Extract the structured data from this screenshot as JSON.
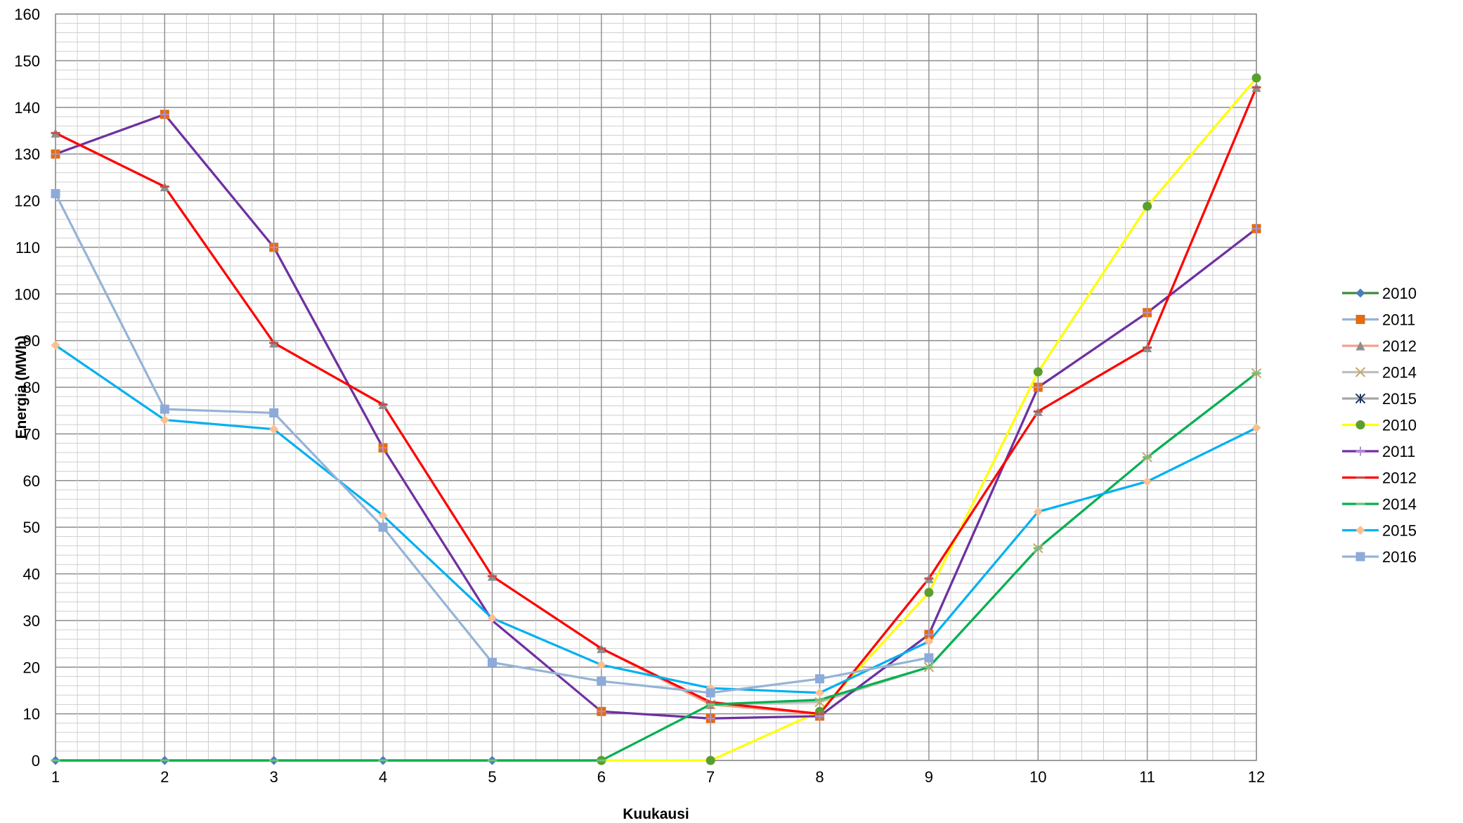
{
  "chart_data": {
    "type": "line",
    "title": "",
    "xlabel": "Kuukausi",
    "ylabel": "Energia (MWh)",
    "x": [
      1,
      2,
      3,
      4,
      5,
      6,
      7,
      8,
      9,
      10,
      11,
      12
    ],
    "x_ticks": [
      "1",
      "2",
      "3",
      "4",
      "5",
      "6",
      "7",
      "8",
      "9",
      "10",
      "11",
      "12"
    ],
    "y_ticks": [
      "0",
      "10",
      "20",
      "30",
      "40",
      "50",
      "60",
      "70",
      "80",
      "90",
      "100",
      "110",
      "120",
      "130",
      "140",
      "150",
      "160"
    ],
    "xlim": [
      1,
      12
    ],
    "ylim": [
      0,
      160
    ],
    "grid": true,
    "legend_position": "right",
    "series": [
      {
        "name": "2010",
        "color": "#3e8a3b",
        "marker": "diamond",
        "marker_color": "#4a7ebb",
        "values": [
          0,
          0,
          0,
          0,
          0,
          0,
          null,
          null,
          null,
          null,
          null,
          null
        ]
      },
      {
        "name": "2011",
        "color": "#95b3d7",
        "marker": "square",
        "marker_color": "#e46c0a",
        "values": [
          130,
          138.5,
          110,
          67,
          null,
          10.5,
          9,
          9.5,
          27,
          80,
          96,
          114
        ]
      },
      {
        "name": "2012",
        "color": "#f2a08a",
        "marker": "triangle",
        "marker_color": "#8f8f8f",
        "values": [
          134.5,
          123,
          89.5,
          76.3,
          39.5,
          24,
          12,
          10,
          39,
          74.8,
          88.5,
          144.3
        ]
      },
      {
        "name": "2014",
        "color": "#bfbfbf",
        "marker": "x",
        "marker_color": "#c8a86a",
        "values": [
          null,
          null,
          null,
          null,
          null,
          null,
          12,
          12.5,
          20,
          45.5,
          65,
          83
        ]
      },
      {
        "name": "2015",
        "color": "#a6a6a6",
        "marker": "star",
        "marker_color": "#1f3864",
        "values": [
          null,
          null,
          null,
          null,
          null,
          null,
          null,
          null,
          null,
          null,
          null,
          null
        ]
      },
      {
        "name": "2010",
        "color": "#ffff00",
        "marker": "circle",
        "marker_color": "#5a9e2f",
        "values": [
          null,
          null,
          null,
          null,
          null,
          0,
          0,
          10.5,
          36,
          83.3,
          118.8,
          146.3
        ]
      },
      {
        "name": "2011",
        "color": "#7030a0",
        "marker": "plus",
        "marker_color": "#b18ed0",
        "values": [
          130,
          138.5,
          110,
          67,
          30,
          10.5,
          9,
          9.5,
          27,
          80,
          96,
          114
        ]
      },
      {
        "name": "2012",
        "color": "#ff0000",
        "marker": "dash",
        "marker_color": "#c0504d",
        "values": [
          134.5,
          123,
          89.5,
          76.3,
          39.5,
          24,
          12.5,
          10,
          39,
          74.8,
          88.5,
          144.3
        ]
      },
      {
        "name": "2014",
        "color": "#00b050",
        "marker": "dash",
        "marker_color": "#6fc27a",
        "values": [
          0,
          0,
          0,
          0,
          0,
          0,
          12,
          13,
          20,
          45.5,
          65,
          83
        ]
      },
      {
        "name": "2015",
        "color": "#00b0f0",
        "marker": "diamond",
        "marker_color": "#fac090",
        "values": [
          89,
          73,
          71,
          52.5,
          30.5,
          20.5,
          15.5,
          14.5,
          25.5,
          53.3,
          59.8,
          71.3
        ]
      },
      {
        "name": "2016",
        "color": "#95b3d7",
        "marker": "square",
        "marker_color": "#8eaadb",
        "values": [
          121.5,
          75.3,
          74.5,
          50,
          21,
          17,
          14.5,
          17.5,
          22,
          null,
          null,
          null
        ]
      }
    ]
  }
}
